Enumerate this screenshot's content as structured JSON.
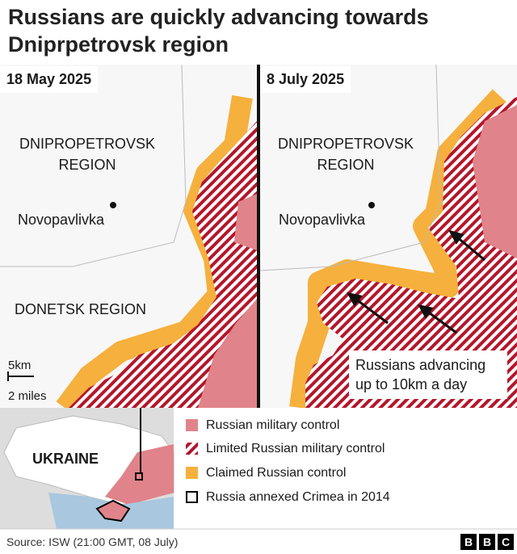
{
  "title": "Russians are quickly advancing towards Dniprpetrovsk region",
  "panels": [
    {
      "date": "18 May 2025",
      "region_label": "DNIPROPETROVSK REGION",
      "town": "Novopavlivka",
      "region_label_2": "DONETSK REGION",
      "scale_km": "5km",
      "scale_miles": "2 miles"
    },
    {
      "date": "8 July 2025",
      "region_label": "DNIPROPETROVSK REGION",
      "town": "Novopavlivka",
      "annotation": "Russians advancing up to 10km a day"
    }
  ],
  "inset": {
    "label": "UKRAINE"
  },
  "legend": [
    "Russian military control",
    "Limited Russian military control",
    "Claimed Russian control",
    "Russia annexed Crimea in 2014"
  ],
  "source": "Source: ISW (21:00 GMT, 08 July)",
  "logo": [
    "B",
    "B",
    "C"
  ]
}
